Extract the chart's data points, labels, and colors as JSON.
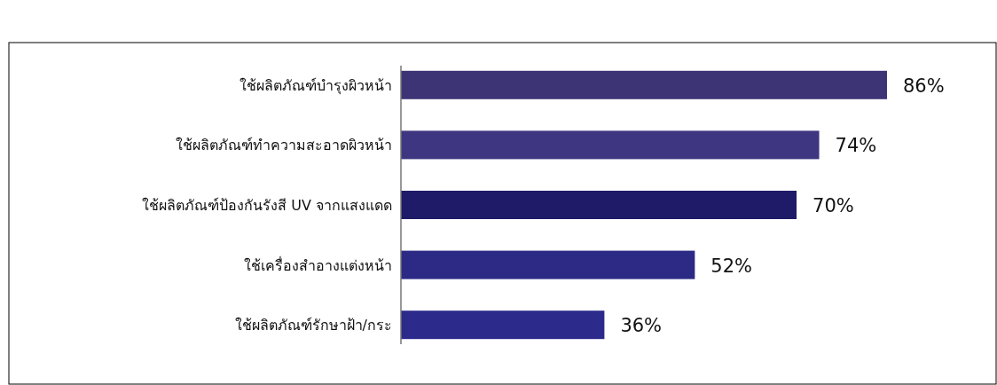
{
  "chart_data": {
    "type": "bar",
    "orientation": "horizontal",
    "categories": [
      "ใช้ผลิตภัณฑ์บำรุงผิวหน้า",
      "ใช้ผลิตภัณฑ์ทำความสะอาดผิวหน้า",
      "ใช้ผลิตภัณฑ์ป้องกันรังสี UV จากแสงแดด",
      "ใช้เครื่องสำอางแต่งหน้า",
      "ใช้ผลิตภัณฑ์รักษาฝ้า/กระ"
    ],
    "values": [
      86,
      74,
      70,
      52,
      36
    ],
    "colors": [
      "#3d3476",
      "#3e3680",
      "#1f1b68",
      "#2c2a85",
      "#2c2a8a"
    ],
    "value_labels": [
      "86%",
      "74%",
      "70%",
      "52%",
      "36%"
    ]
  }
}
